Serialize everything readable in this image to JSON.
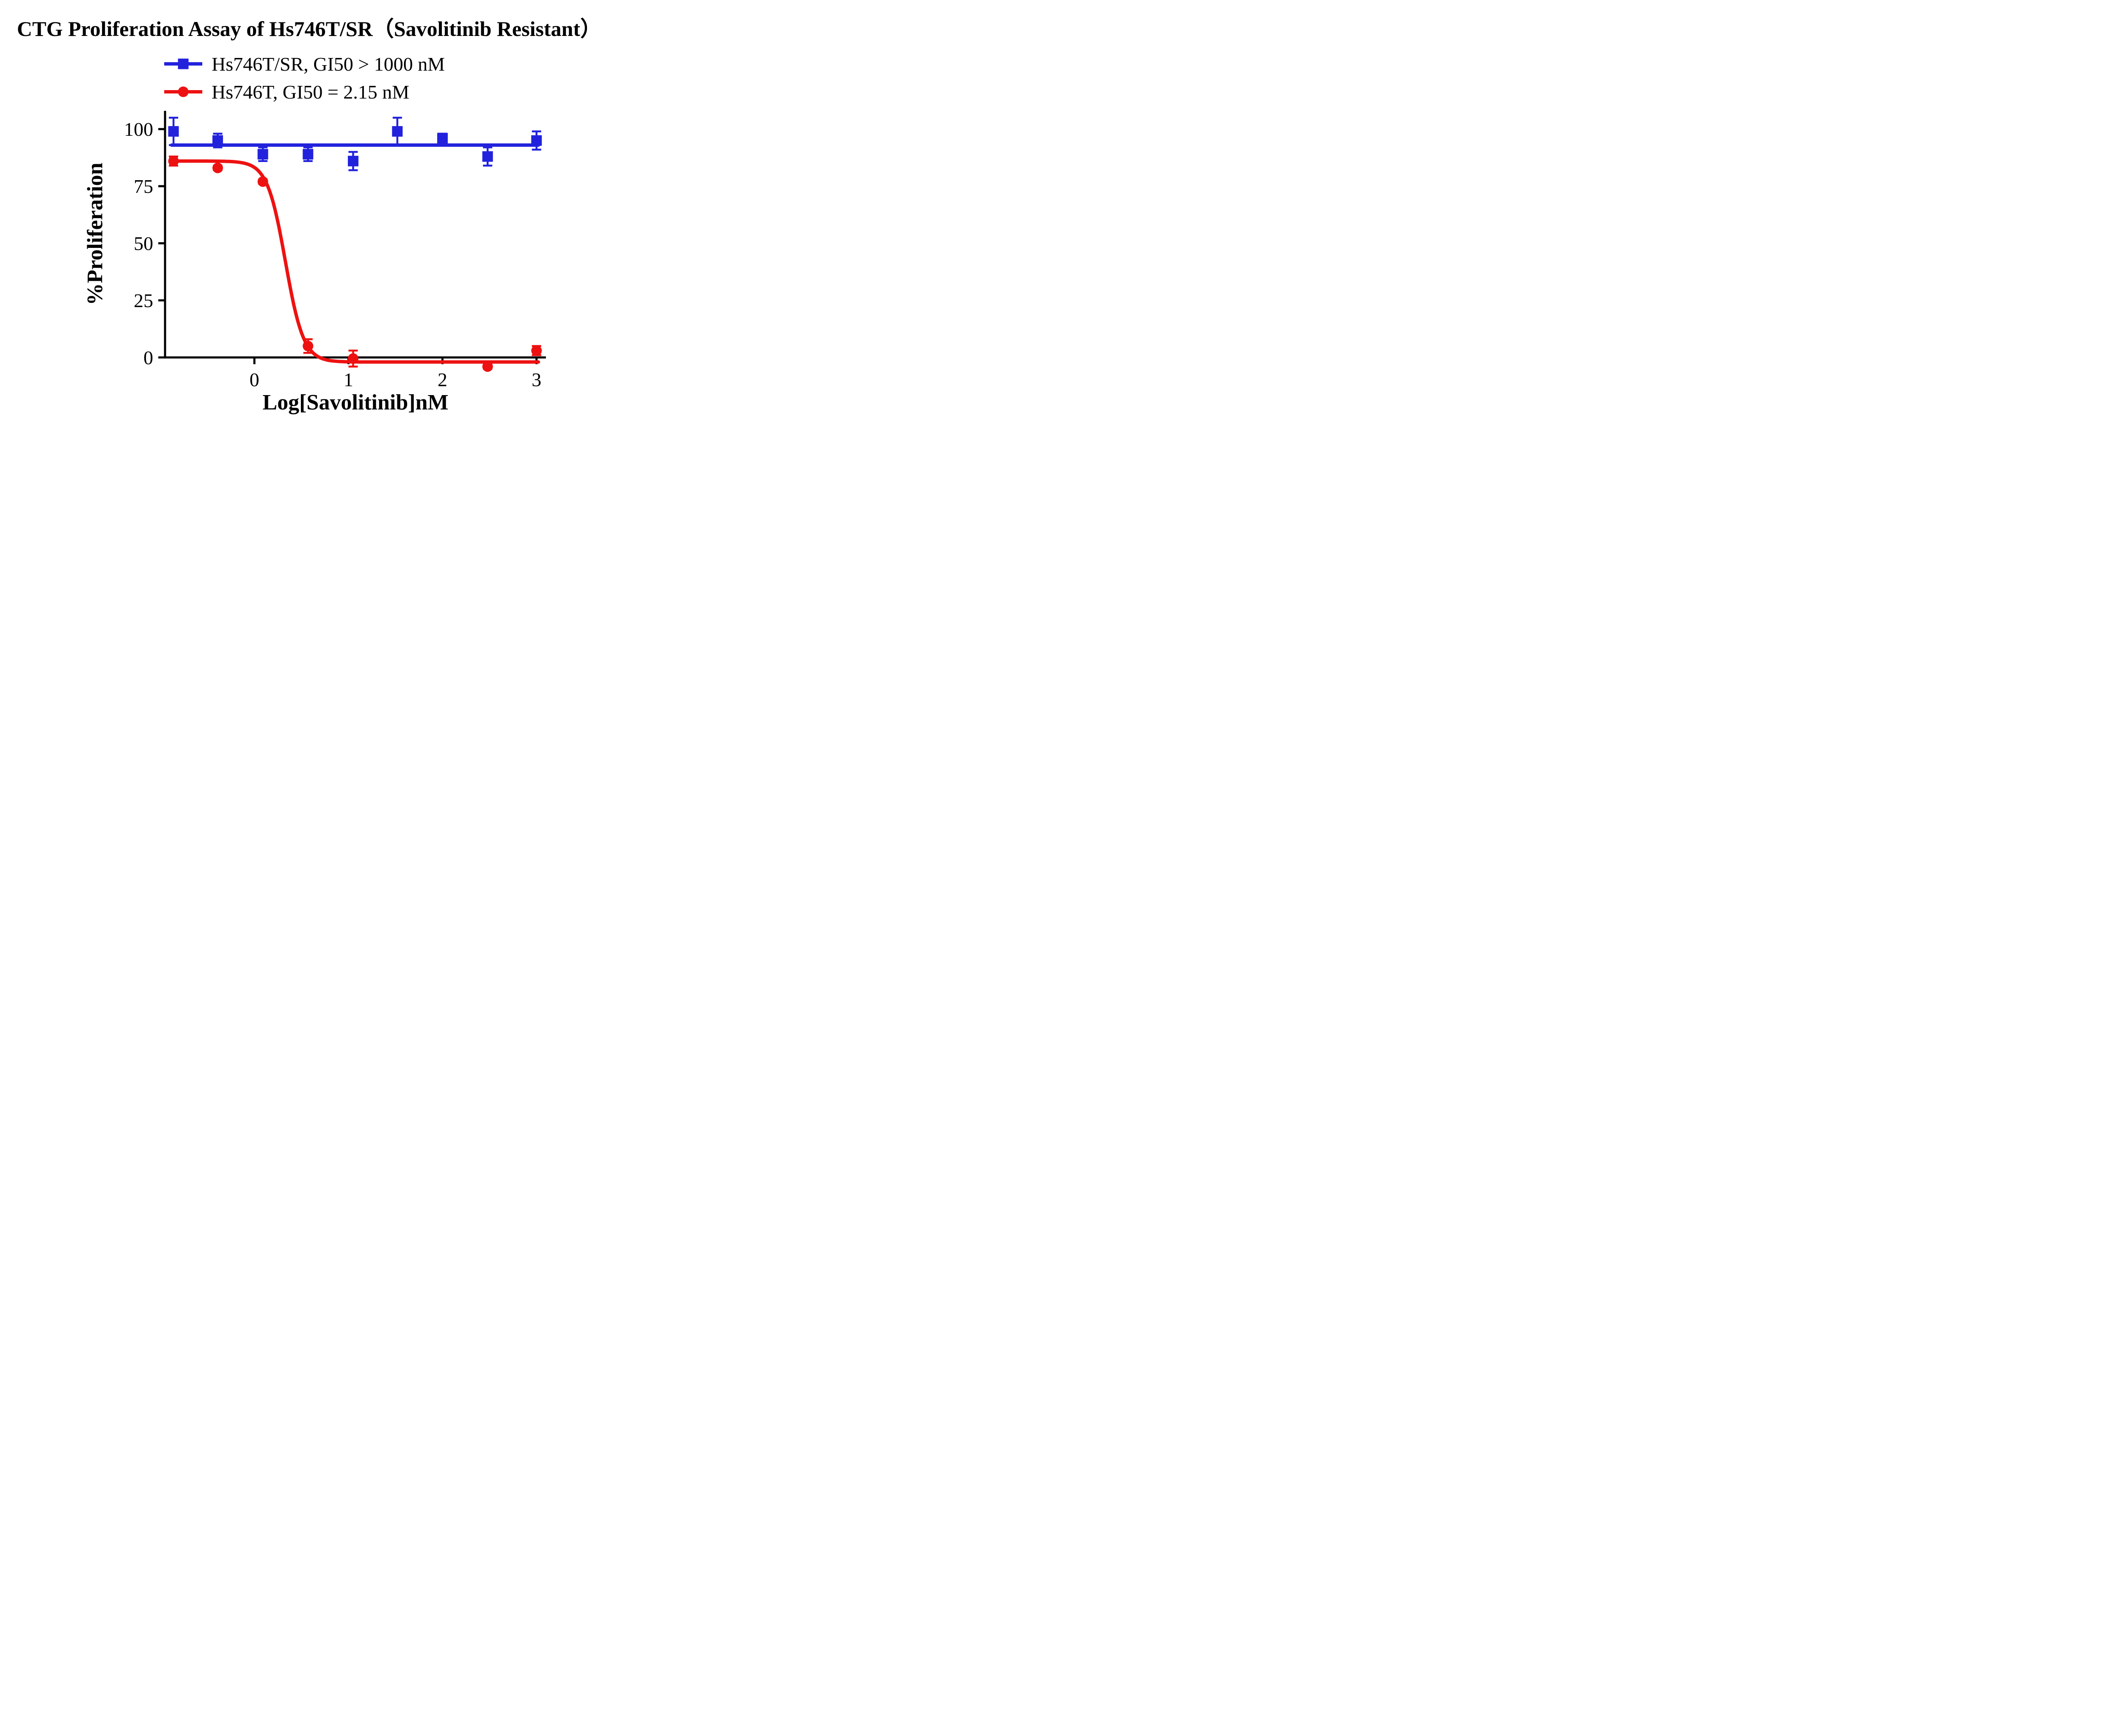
{
  "chart_data": {
    "type": "scatter",
    "title": "CTG Proliferation Assay of Hs746T/SR（Savolitinib Resistant）",
    "xlabel": "Log[Savolitinib]nM",
    "ylabel": "%Proliferation",
    "x_ticks": [
      0,
      1,
      2,
      3
    ],
    "y_ticks": [
      0,
      25,
      50,
      75,
      100
    ],
    "xlim": [
      -0.95,
      3.1
    ],
    "ylim": [
      0,
      108
    ],
    "fit_x_range": [
      -0.88,
      3.02
    ],
    "grid": "off",
    "legend_position": "top-left",
    "series": [
      {
        "name": "Hs746T/SR",
        "label": "Hs746T/SR, GI50 > 1000 nM",
        "gi50": "> 1000 nM",
        "color": "#2222dd",
        "marker": "square",
        "x": [
          -0.86,
          -0.39,
          0.09,
          0.57,
          1.05,
          1.52,
          2.0,
          2.48,
          3.0
        ],
        "y": [
          99,
          95,
          89,
          89,
          86,
          99,
          96,
          88,
          95
        ],
        "err": [
          6,
          3,
          3,
          3,
          4,
          6,
          2,
          4,
          4
        ],
        "fit": {
          "type": "flat",
          "value": 93
        }
      },
      {
        "name": "Hs746T",
        "label": "Hs746T, GI50 = 2.15 nM",
        "gi50": "2.15 nM",
        "color": "#ee1111",
        "marker": "circle",
        "x": [
          -0.86,
          -0.39,
          0.09,
          0.57,
          1.05,
          2.48,
          3.0
        ],
        "y": [
          86,
          83,
          77,
          5,
          -0.5,
          -4,
          3
        ],
        "err": [
          2,
          1,
          1,
          3,
          3.5,
          1,
          2
        ],
        "fit": {
          "type": "sigmoid",
          "top": 86,
          "bottom": -2,
          "logic50": 0.33,
          "hill": 4.5
        }
      }
    ]
  }
}
